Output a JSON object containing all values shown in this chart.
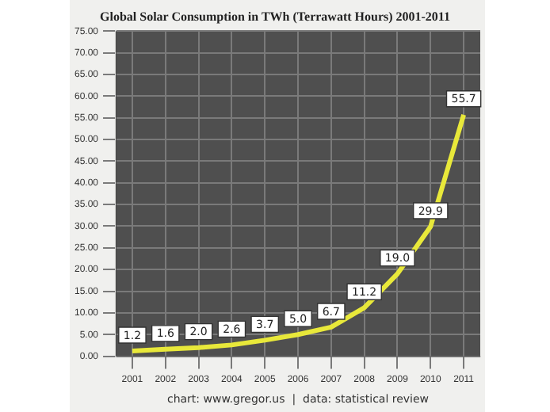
{
  "chart_data": {
    "type": "line",
    "title": "Global Solar Consumption in TWh (Terrawatt Hours) 2001-2011",
    "categories": [
      "2001",
      "2002",
      "2003",
      "2004",
      "2005",
      "2006",
      "2007",
      "2008",
      "2009",
      "2010",
      "2011"
    ],
    "series": [
      {
        "color": "#e8e83a",
        "values": [
          1.2,
          1.6,
          2.0,
          2.6,
          3.7,
          5.0,
          6.7,
          11.2,
          19.0,
          29.9,
          55.7
        ],
        "value_labels": [
          "1.2",
          "1.6",
          "2.0",
          "2.6",
          "3.7",
          "5.0",
          "6.7",
          "11.2",
          "19.0",
          "29.9",
          "55.7"
        ]
      }
    ],
    "ylim": [
      0,
      75
    ],
    "yticks": [
      {
        "value": 0,
        "label": "0.00"
      },
      {
        "value": 5,
        "label": "5.00"
      },
      {
        "value": 10,
        "label": "10.00"
      },
      {
        "value": 15,
        "label": "15.00"
      },
      {
        "value": 20,
        "label": "20.00"
      },
      {
        "value": 25,
        "label": "25.00"
      },
      {
        "value": 30,
        "label": "30.00"
      },
      {
        "value": 35,
        "label": "35.00"
      },
      {
        "value": 40,
        "label": "40.00"
      },
      {
        "value": 45,
        "label": "45.00"
      },
      {
        "value": 50,
        "label": "50.00"
      },
      {
        "value": 55,
        "label": "55.00"
      },
      {
        "value": 60,
        "label": "60.00"
      },
      {
        "value": 65,
        "label": "65.00"
      },
      {
        "value": 70,
        "label": "70.00"
      },
      {
        "value": 75,
        "label": "75.00"
      }
    ],
    "grid": true,
    "legend": false,
    "marker": "none",
    "line_style": "solid",
    "annotations": [
      "chart: www.gregor.us  |  data: statistical review"
    ]
  }
}
